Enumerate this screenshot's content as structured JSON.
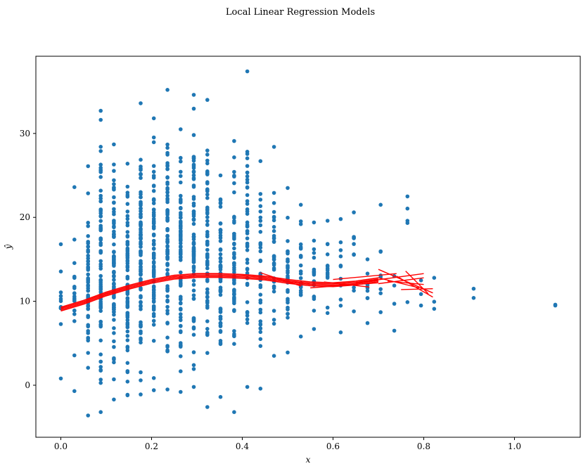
{
  "chart_data": {
    "type": "scatter",
    "title": "Local Linear Regression Models",
    "xlabel": "x",
    "ylabel": "ŷ",
    "xlim": [
      -0.055,
      1.145
    ],
    "ylim": [
      -6.2,
      39.2
    ],
    "xticks": [
      0.0,
      0.2,
      0.4,
      0.6,
      0.8,
      1.0
    ],
    "xtick_labels": [
      "0.0",
      "0.2",
      "0.4",
      "0.6",
      "0.8",
      "1.0"
    ],
    "yticks": [
      0,
      10,
      20,
      30
    ],
    "ytick_labels": [
      "0",
      "10",
      "20",
      "30"
    ],
    "grid": false,
    "colors": {
      "points": "#1f77b4",
      "lines": "#ff0000"
    },
    "scatter_columns": [
      {
        "x": 0.0,
        "min": 0.8,
        "max": 16.8,
        "count": 12
      },
      {
        "x": 0.03,
        "min": -0.7,
        "max": 23.6,
        "count": 20
      },
      {
        "x": 0.06,
        "min": -3.6,
        "max": 26.1,
        "count": 55
      },
      {
        "x": 0.088,
        "min": -3.2,
        "max": 32.7,
        "count": 80
      },
      {
        "x": 0.117,
        "min": -1.7,
        "max": 28.7,
        "count": 85
      },
      {
        "x": 0.147,
        "min": -1.2,
        "max": 26.4,
        "count": 90
      },
      {
        "x": 0.176,
        "min": -1.1,
        "max": 33.6,
        "count": 90
      },
      {
        "x": 0.205,
        "min": -0.6,
        "max": 31.8,
        "count": 85
      },
      {
        "x": 0.235,
        "min": -0.5,
        "max": 35.2,
        "count": 85
      },
      {
        "x": 0.264,
        "min": -0.8,
        "max": 30.5,
        "count": 80
      },
      {
        "x": 0.293,
        "min": -0.2,
        "max": 34.6,
        "count": 80
      },
      {
        "x": 0.323,
        "min": -2.6,
        "max": 34.0,
        "count": 75
      },
      {
        "x": 0.352,
        "min": -1.4,
        "max": 25.0,
        "count": 65
      },
      {
        "x": 0.382,
        "min": -3.2,
        "max": 29.1,
        "count": 55
      },
      {
        "x": 0.411,
        "min": -0.2,
        "max": 37.4,
        "count": 45
      },
      {
        "x": 0.44,
        "min": -0.4,
        "max": 26.7,
        "count": 40
      },
      {
        "x": 0.47,
        "min": 3.5,
        "max": 28.4,
        "count": 35
      },
      {
        "x": 0.5,
        "min": 3.9,
        "max": 23.5,
        "count": 30
      },
      {
        "x": 0.529,
        "min": 5.8,
        "max": 21.5,
        "count": 22
      },
      {
        "x": 0.558,
        "min": 6.7,
        "max": 19.4,
        "count": 18
      },
      {
        "x": 0.588,
        "min": 8.6,
        "max": 19.6,
        "count": 14
      },
      {
        "x": 0.617,
        "min": 6.3,
        "max": 19.8,
        "count": 12
      },
      {
        "x": 0.646,
        "min": 8.8,
        "max": 20.6,
        "count": 10
      },
      {
        "x": 0.676,
        "min": 7.4,
        "max": 15.0,
        "count": 8
      },
      {
        "x": 0.705,
        "min": 8.7,
        "max": 21.5,
        "count": 8
      },
      {
        "x": 0.735,
        "min": 6.5,
        "max": 13.0,
        "count": 4
      },
      {
        "x": 0.764,
        "min": 9.9,
        "max": 22.5,
        "count": 5
      },
      {
        "x": 0.794,
        "min": 9.5,
        "max": 12.5,
        "count": 3
      },
      {
        "x": 0.823,
        "min": 9.1,
        "max": 12.8,
        "count": 3
      },
      {
        "x": 0.91,
        "min": 10.4,
        "max": 11.5,
        "count": 2
      },
      {
        "x": 1.09,
        "min": 9.5,
        "max": 9.6,
        "count": 2
      }
    ],
    "fit_curve": [
      [
        0.0,
        9.0
      ],
      [
        0.05,
        9.8
      ],
      [
        0.1,
        10.8
      ],
      [
        0.15,
        11.6
      ],
      [
        0.2,
        12.3
      ],
      [
        0.25,
        12.8
      ],
      [
        0.3,
        13.0
      ],
      [
        0.35,
        13.0
      ],
      [
        0.4,
        12.9
      ],
      [
        0.45,
        12.7
      ],
      [
        0.5,
        12.3
      ],
      [
        0.55,
        12.0
      ],
      [
        0.6,
        11.9
      ],
      [
        0.65,
        12.1
      ],
      [
        0.7,
        12.5
      ]
    ],
    "fit_segments": [
      [
        [
          0.44,
          13.4
        ],
        [
          0.53,
          11.8
        ]
      ],
      [
        [
          0.55,
          11.6
        ],
        [
          0.7,
          12.2
        ]
      ],
      [
        [
          0.6,
          12.6
        ],
        [
          0.74,
          13.3
        ]
      ],
      [
        [
          0.65,
          12.2
        ],
        [
          0.8,
          13.3
        ]
      ],
      [
        [
          0.7,
          13.8
        ],
        [
          0.82,
          11.0
        ]
      ],
      [
        [
          0.7,
          12.1
        ],
        [
          0.8,
          12.8
        ]
      ],
      [
        [
          0.74,
          13.0
        ],
        [
          0.82,
          10.5
        ]
      ],
      [
        [
          0.75,
          11.4
        ],
        [
          0.82,
          11.5
        ]
      ],
      [
        [
          0.76,
          13.6
        ],
        [
          0.81,
          10.9
        ]
      ],
      [
        [
          0.7,
          12.8
        ],
        [
          0.79,
          11.6
        ]
      ],
      [
        [
          0.58,
          12.3
        ],
        [
          0.68,
          11.7
        ]
      ],
      [
        [
          0.72,
          12.4
        ],
        [
          0.8,
          12.0
        ]
      ]
    ]
  }
}
